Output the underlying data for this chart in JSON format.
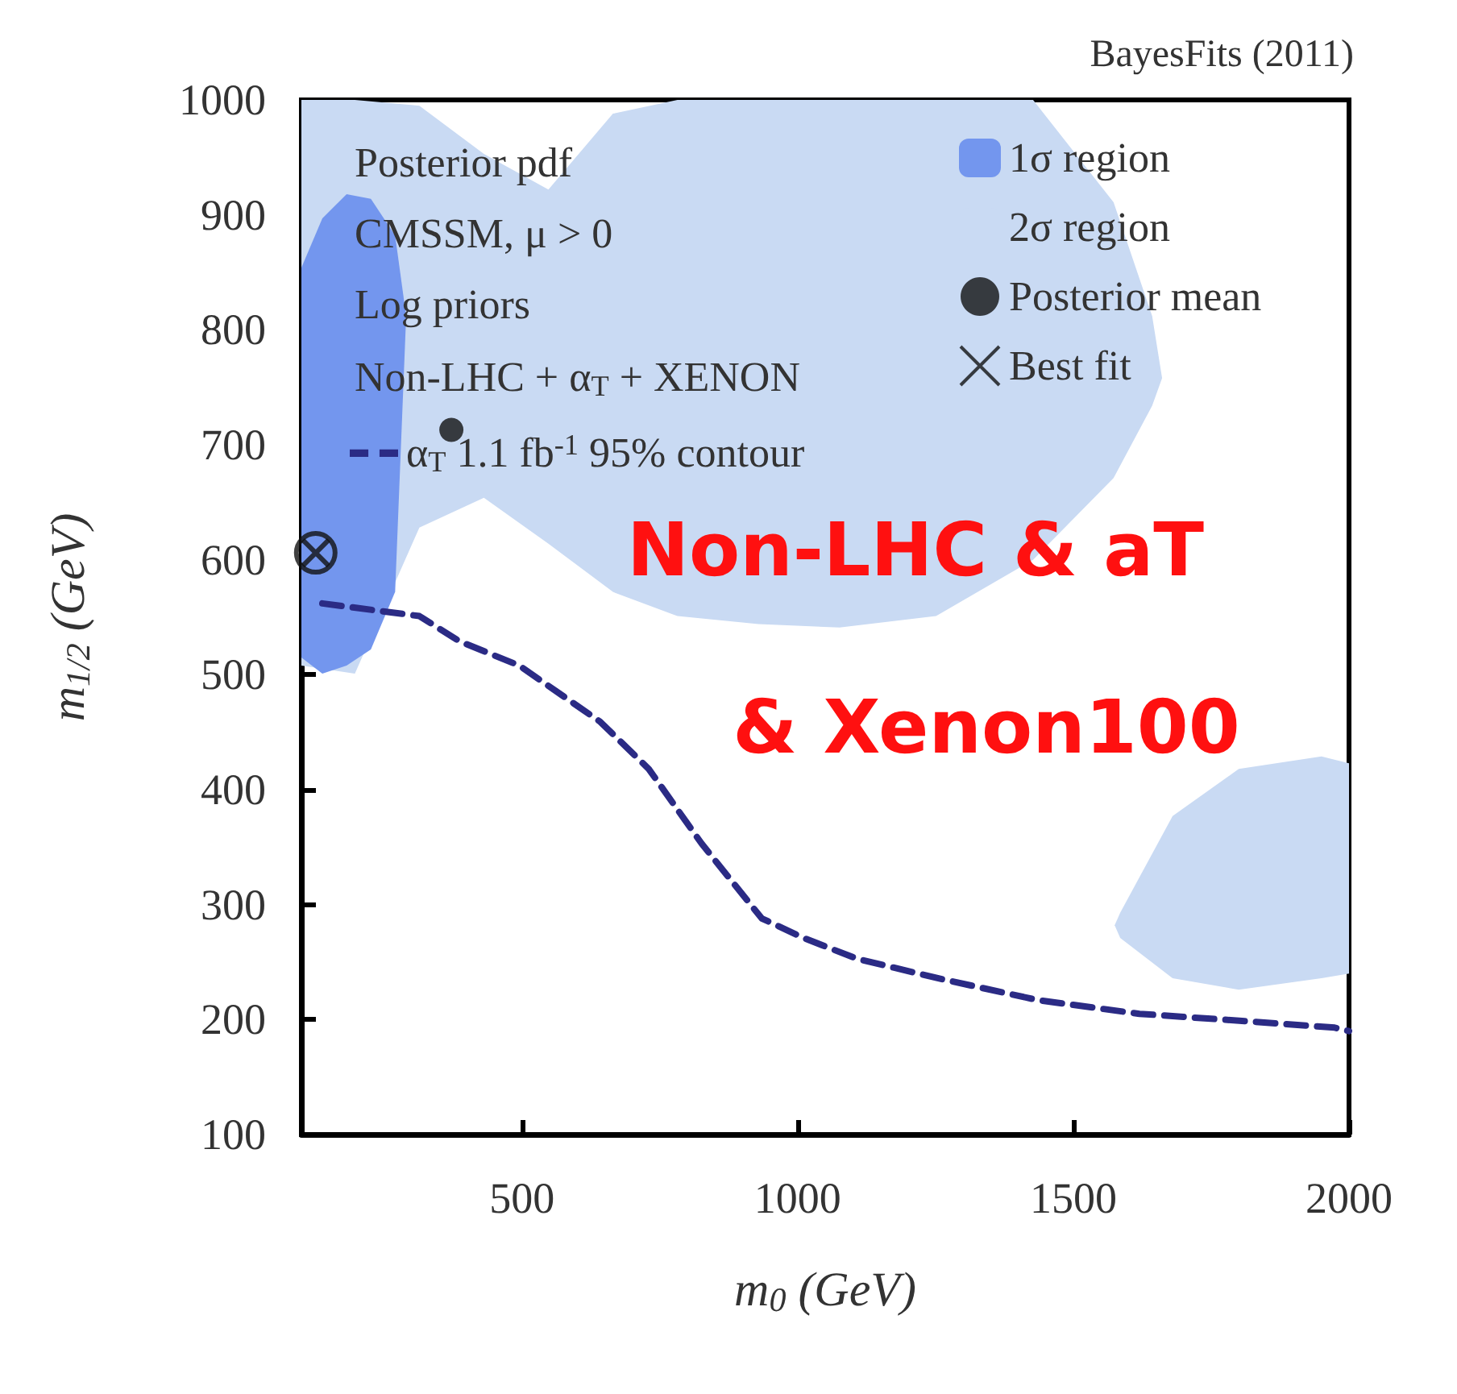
{
  "chart_data": {
    "type": "area",
    "xlabel": "m$_{0}$ (GeV)",
    "ylabel": "m$_{1/2}$ (GeV)",
    "xlim": [
      100,
      2000
    ],
    "xticks": [
      500,
      1000,
      1500,
      2000
    ],
    "ylim": [
      100,
      1000
    ],
    "yticks": [
      100,
      200,
      300,
      400,
      500,
      600,
      700,
      800,
      900,
      1000
    ],
    "grid": false,
    "legend": "top right",
    "annotations": [
      "BayesFits (2011)",
      "Posterior pdf",
      "CMSSM, μ > 0",
      "Log priors",
      "Non-LHC + α$_{T}$ + XENON",
      "Non-LHC & aT",
      "& Xenon100"
    ],
    "series": [
      {
        "name": "1σ region",
        "color": "#7396ee",
        "x": [
          100,
          138,
          182,
          226,
          270,
          290,
          270,
          226,
          182,
          138,
          100
        ],
        "values": [
          854,
          897,
          918,
          914,
          882,
          812,
          572,
          522,
          508,
          501,
          515
        ]
      },
      {
        "name": "2σ region",
        "color": "#c9daf3",
        "x": [
          100,
          197,
          314,
          431,
          548,
          665,
          782,
          929,
          1076,
          1251,
          1427,
          1573,
          1643,
          1661,
          1643,
          1573,
          1427,
          1251,
          1076,
          929,
          782,
          665,
          548,
          431,
          314,
          197,
          100
        ],
        "values": [
          1000,
          1000,
          995,
          953,
          922,
          988,
          1000,
          1000,
          1000,
          1000,
          1000,
          911,
          812,
          758,
          734,
          671,
          600,
          551,
          541,
          544,
          551,
          572,
          614,
          654,
          628,
          501,
          508
        ]
      },
      {
        "color": "#c9daf3",
        "x": [
          1575,
          1585,
          1680,
          1800,
          1950,
          2000,
          2000,
          1950,
          1800,
          1680,
          1585
        ],
        "values": [
          282,
          293,
          377,
          418,
          429,
          423,
          240,
          236,
          226,
          236,
          271
        ]
      },
      {
        "name": "α$_{T}$ 1.1 fb$^{-1}$ 95% contour",
        "type": "line",
        "color": "#2b2b85",
        "line_style": "dashed",
        "marker": "none",
        "x": [
          138,
          314,
          387,
          495,
          642,
          730,
          826,
          935,
          1011,
          1107,
          1254,
          1435,
          1620,
          1801,
          1974,
          2000
        ],
        "values": [
          562,
          551,
          529,
          508,
          459,
          418,
          353,
          288,
          271,
          253,
          236,
          217,
          205,
          199,
          193,
          190
        ]
      },
      {
        "name": "Posterior mean",
        "type": "scatter",
        "color": "#111111",
        "marker": "circle",
        "x": [
          372
        ],
        "values": [
          713
        ]
      },
      {
        "name": "Best fit",
        "type": "scatter",
        "color": "#111111",
        "marker": "cross",
        "x": [
          126
        ],
        "values": [
          606
        ]
      }
    ]
  }
}
